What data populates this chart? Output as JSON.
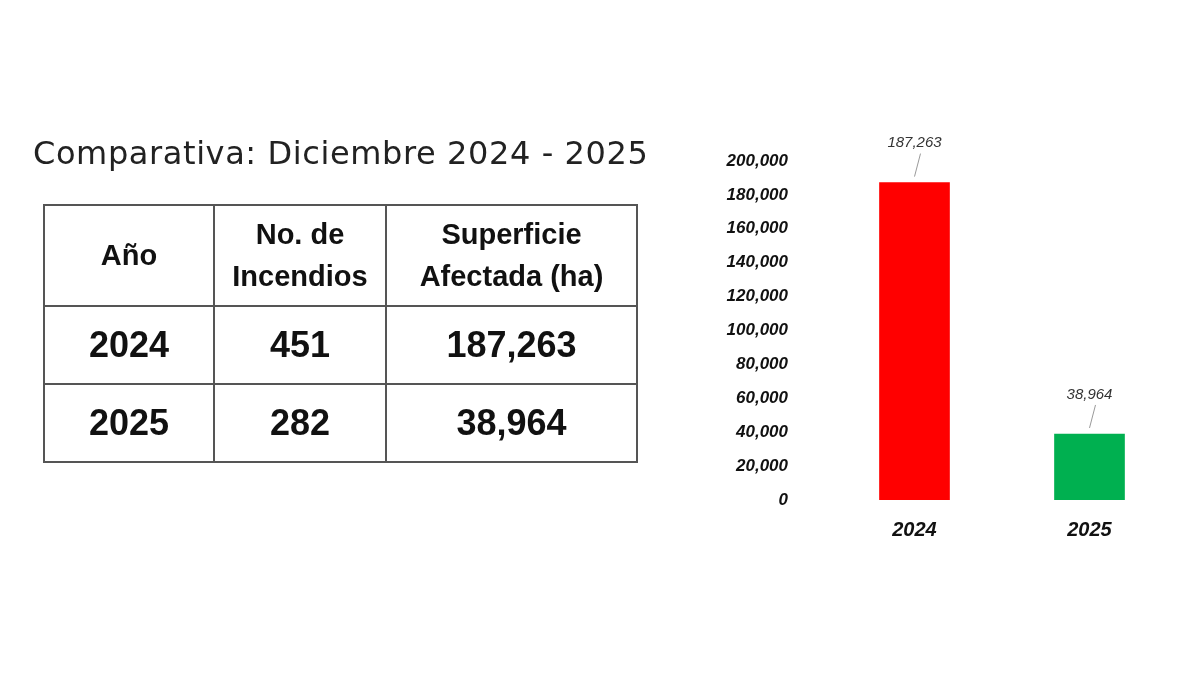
{
  "chart_data": [
    {
      "type": "other",
      "title": "Comparativa: Diciembre 2024 - 2025",
      "xlabel": "Año",
      "categories": [
        "2024",
        "2025"
      ],
      "series": [
        {
          "name": "No. de Incendios",
          "values": [
            451,
            282
          ]
        },
        {
          "name": "Superficie Afectada (ha)",
          "values": [
            187263,
            38964
          ],
          "value_labels": [
            "187,263",
            "38,964"
          ]
        }
      ],
      "data_labels": true
    },
    {
      "type": "bar",
      "categories": [
        "2024",
        "2025"
      ],
      "values": [
        187263,
        38964
      ],
      "value_labels": [
        "187,263",
        "38,964"
      ],
      "colors": [
        "#ff0000",
        "#00b050"
      ],
      "ylim": [
        0,
        200000
      ],
      "yticks": [
        0,
        {
          "value": 20000,
          "label": "20,000"
        },
        {
          "value": 40000,
          "label": "40,000"
        },
        {
          "value": 60000,
          "label": "60,000"
        },
        {
          "value": 80000,
          "label": "80,000"
        },
        {
          "value": 100000,
          "label": "100,000"
        },
        {
          "value": 120000,
          "label": "120,000"
        },
        {
          "value": 140000,
          "label": "140,000"
        },
        {
          "value": 160000,
          "label": "160,000"
        },
        {
          "value": 180000,
          "label": "180,000"
        },
        {
          "value": 200000,
          "label": "200,000"
        }
      ],
      "grid": false,
      "legend": false
    }
  ]
}
